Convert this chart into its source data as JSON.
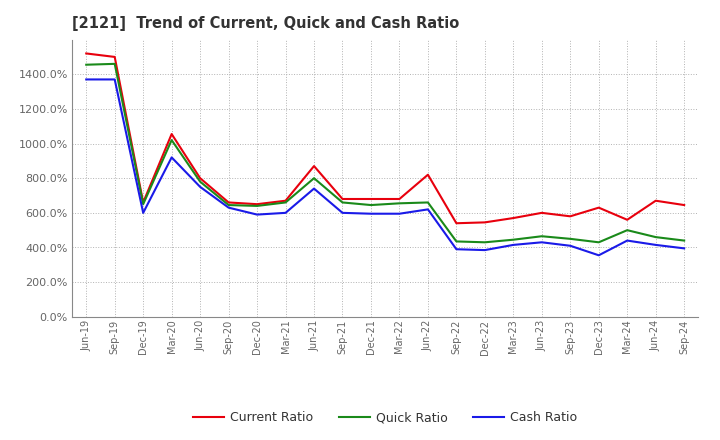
{
  "title": "[2121]  Trend of Current, Quick and Cash Ratio",
  "labels": [
    "Jun-19",
    "Sep-19",
    "Dec-19",
    "Mar-20",
    "Jun-20",
    "Sep-20",
    "Dec-20",
    "Mar-21",
    "Jun-21",
    "Sep-21",
    "Dec-21",
    "Mar-22",
    "Jun-22",
    "Sep-22",
    "Dec-22",
    "Mar-23",
    "Jun-23",
    "Sep-23",
    "Dec-23",
    "Mar-24",
    "Jun-24",
    "Sep-24"
  ],
  "current_ratio": [
    1520,
    1500,
    660,
    1055,
    800,
    660,
    650,
    670,
    870,
    680,
    680,
    680,
    820,
    540,
    545,
    570,
    600,
    580,
    630,
    560,
    670,
    645
  ],
  "quick_ratio": [
    1455,
    1460,
    650,
    1020,
    780,
    645,
    640,
    660,
    800,
    660,
    645,
    655,
    660,
    435,
    430,
    445,
    465,
    450,
    430,
    500,
    460,
    440
  ],
  "cash_ratio": [
    1370,
    1370,
    600,
    920,
    750,
    630,
    590,
    600,
    740,
    600,
    595,
    595,
    620,
    390,
    385,
    415,
    430,
    410,
    355,
    440,
    415,
    395
  ],
  "current_color": "#e8000d",
  "quick_color": "#1a8a1a",
  "cash_color": "#1a1ae8",
  "background_color": "#ffffff",
  "grid_color": "#aaaaaa",
  "ylim": [
    0,
    1600
  ],
  "yticks": [
    0,
    200,
    400,
    600,
    800,
    1000,
    1200,
    1400
  ],
  "legend_labels": [
    "Current Ratio",
    "Quick Ratio",
    "Cash Ratio"
  ]
}
